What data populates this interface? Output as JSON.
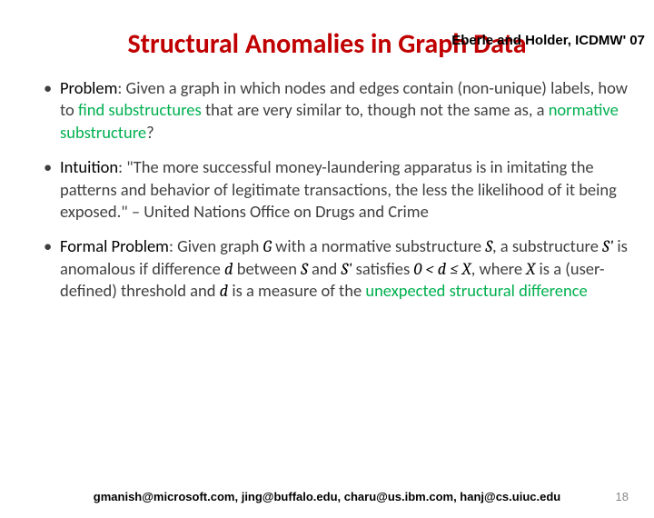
{
  "citation": "Eberle and Holder, ICDMW' 07",
  "title_text": "Structural Anomalies in Graph Data",
  "title_color": "#c00000",
  "bullets": {
    "b1": {
      "label": "Problem",
      "pre": ": Given a graph in which nodes and edges contain (non-unique) labels, how to ",
      "hl_a": "find substructures ",
      "mid": "that are very similar to, though not the same as, a ",
      "hl_b": "normative substructure",
      "post": "?"
    },
    "b2": {
      "label": "Intuition",
      "text": ": \"The more successful money-laundering apparatus is in imitating the patterns and behavior of legitimate transactions, the less the likelihood of it being exposed.\" – United Nations Office on Drugs and Crime"
    },
    "b3": {
      "label": "Formal Problem",
      "p1": ": Given graph ",
      "m1": "G",
      "p2": " with a normative substructure ",
      "m2": "S",
      "p3": ", a substructure ",
      "m3": "S'",
      "p4": " is anomalous if difference ",
      "m4": "d",
      "p5": " between ",
      "m5": "S",
      "p6": " and ",
      "m6": "S'",
      "p7": " satisfies ",
      "m7": "0 < d ≤ X",
      "p8": ", where ",
      "m8": "X",
      "p9": " is a (user-defined) threshold and ",
      "m9": "d",
      "p10": " is a measure of the ",
      "hl": "unexpected structural difference"
    }
  },
  "footer": "gmanish@microsoft.com, jing@buffalo.edu, charu@us.ibm.com, hanj@cs.uiuc.edu",
  "page": "18"
}
